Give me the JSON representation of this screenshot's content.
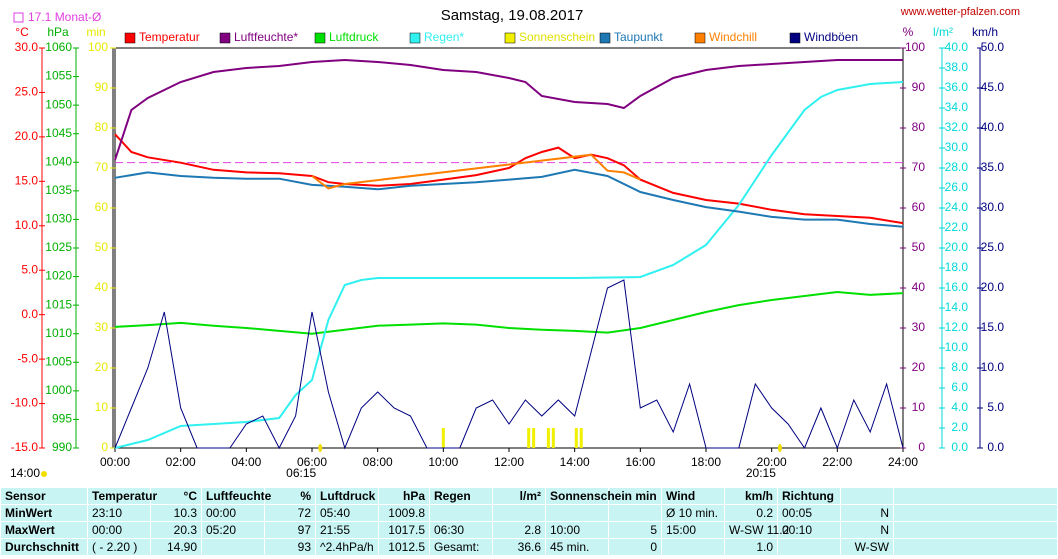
{
  "chart_data": {
    "type": "line",
    "title": "Samstag, 19.08.2017",
    "source": "www.wetter-pfalzen.com",
    "reference": {
      "label": "17.1 Monat-Ø",
      "value": 17.1,
      "axis": 0,
      "color": "#e040e0"
    },
    "time_label": "14:00",
    "annotations": [
      {
        "x": 6.25,
        "label": "06:15"
      },
      {
        "x": 20.25,
        "label": "20:15"
      }
    ],
    "xlim": [
      0,
      24
    ],
    "xticks": [
      {
        "value": 0,
        "label": "00:00"
      },
      {
        "value": 2,
        "label": "02:00"
      },
      {
        "value": 4,
        "label": "04:00"
      },
      {
        "value": 6,
        "label": "06:00"
      },
      {
        "value": 8,
        "label": "08:00"
      },
      {
        "value": 10,
        "label": "10:00"
      },
      {
        "value": 12,
        "label": "12:00"
      },
      {
        "value": 14,
        "label": "14:00"
      },
      {
        "value": 16,
        "label": "16:00"
      },
      {
        "value": 18,
        "label": "18:00"
      },
      {
        "value": 20,
        "label": "20:00"
      },
      {
        "value": 22,
        "label": "22:00"
      },
      {
        "value": 24,
        "label": "24:00"
      }
    ],
    "axes": [
      {
        "label": "°C",
        "color": "#ff0000",
        "lim": [
          -15,
          30
        ],
        "ticks": [
          {
            "value": -15,
            "label": "-15.0"
          },
          {
            "value": -10,
            "label": "-10.0"
          },
          {
            "value": -5,
            "label": "-5.0"
          },
          {
            "value": 0,
            "label": "0.0"
          },
          {
            "value": 5,
            "label": "5.0"
          },
          {
            "value": 10,
            "label": "10.0"
          },
          {
            "value": 15,
            "label": "15.0"
          },
          {
            "value": 20,
            "label": "20.0"
          },
          {
            "value": 25,
            "label": "25.0"
          },
          {
            "value": 30,
            "label": "30.0"
          }
        ]
      },
      {
        "label": "hPa",
        "color": "#00b000",
        "lim": [
          990,
          1060
        ],
        "ticks": [
          990,
          995,
          1000,
          1005,
          1010,
          1015,
          1020,
          1025,
          1030,
          1035,
          1040,
          1045,
          1050,
          1055,
          1060
        ]
      },
      {
        "label": "min",
        "color": "#e8e800",
        "lim": [
          0,
          100
        ],
        "ticks": [
          0,
          10,
          20,
          30,
          40,
          50,
          60,
          70,
          80,
          90,
          100
        ]
      },
      {
        "label": "%",
        "color": "#800080",
        "lim": [
          0,
          100
        ],
        "ticks": [
          0,
          10,
          20,
          30,
          40,
          50,
          60,
          70,
          80,
          90,
          100
        ]
      },
      {
        "label": "l/m²",
        "color": "#00d8d8",
        "lim": [
          0,
          40
        ],
        "ticks": [
          {
            "value": 0,
            "label": "0.0"
          },
          {
            "value": 2,
            "label": "2.0"
          },
          {
            "value": 4,
            "label": "4.0"
          },
          {
            "value": 6,
            "label": "6.0"
          },
          {
            "value": 8,
            "label": "8.0"
          },
          {
            "value": 10,
            "label": "10.0"
          },
          {
            "value": 12,
            "label": "12.0"
          },
          {
            "value": 14,
            "label": "14.0"
          },
          {
            "value": 16,
            "label": "16.0"
          },
          {
            "value": 18,
            "label": "18.0"
          },
          {
            "value": 20,
            "label": "20.0"
          },
          {
            "value": 22,
            "label": "22.0"
          },
          {
            "value": 24,
            "label": "24.0"
          },
          {
            "value": 26,
            "label": "26.0"
          },
          {
            "value": 28,
            "label": "28.0"
          },
          {
            "value": 30,
            "label": "30.0"
          },
          {
            "value": 32,
            "label": "32.0"
          },
          {
            "value": 34,
            "label": "34.0"
          },
          {
            "value": 36,
            "label": "36.0"
          },
          {
            "value": 38,
            "label": "38.0"
          },
          {
            "value": 40,
            "label": "40.0"
          }
        ]
      },
      {
        "label": "km/h",
        "color": "#000080",
        "lim": [
          0,
          50
        ],
        "ticks": [
          {
            "value": 0,
            "label": "0.0"
          },
          {
            "value": 5,
            "label": "5.0"
          },
          {
            "value": 10,
            "label": "10.0"
          },
          {
            "value": 15,
            "label": "15.0"
          },
          {
            "value": 20,
            "label": "20.0"
          },
          {
            "value": 25,
            "label": "25.0"
          },
          {
            "value": 30,
            "label": "30.0"
          },
          {
            "value": 35,
            "label": "35.0"
          },
          {
            "value": 40,
            "label": "40.0"
          },
          {
            "value": 45,
            "label": "45.0"
          },
          {
            "value": 50,
            "label": "50.0"
          }
        ]
      }
    ],
    "series": [
      {
        "name": "Temperatur",
        "color": "#ff0000",
        "axis": 0,
        "x": [
          0,
          0.5,
          1,
          2,
          3,
          4,
          5,
          6,
          6.5,
          7,
          8,
          9,
          10,
          11,
          12,
          12.5,
          13,
          13.5,
          14,
          14.5,
          15,
          15.5,
          16,
          17,
          18,
          19,
          20,
          21,
          22,
          23,
          24
        ],
        "values": [
          20.3,
          18.3,
          17.7,
          17.1,
          16.3,
          16.0,
          15.9,
          15.6,
          14.9,
          14.7,
          14.5,
          14.7,
          15.2,
          15.7,
          16.5,
          17.6,
          18.3,
          18.8,
          17.6,
          18.0,
          17.6,
          16.8,
          15.2,
          13.7,
          12.9,
          12.5,
          11.8,
          11.3,
          11.1,
          10.9,
          10.3
        ]
      },
      {
        "name": "Luftfeuchte*",
        "color": "#800080",
        "axis": 3,
        "x": [
          0,
          0.5,
          1,
          2,
          3,
          4,
          5,
          6,
          7,
          8,
          9,
          10,
          11,
          12,
          12.5,
          13,
          14,
          15,
          15.5,
          16,
          17,
          18,
          19,
          20,
          21,
          22,
          23,
          24
        ],
        "values": [
          72,
          84.5,
          87.5,
          91.5,
          94,
          95,
          95.5,
          96.5,
          97,
          96.5,
          95.75,
          94.5,
          94,
          92.5,
          91.5,
          88,
          86.5,
          86,
          85,
          88,
          92.5,
          94.5,
          95.5,
          96,
          96.5,
          97,
          97,
          97
        ]
      },
      {
        "name": "Luftdruck",
        "color": "#00e000",
        "axis": 1,
        "x": [
          0,
          1,
          2,
          3,
          4,
          5,
          6,
          7,
          8,
          9,
          10,
          11,
          12,
          13,
          14,
          15,
          16,
          17,
          18,
          19,
          20,
          21,
          22,
          23,
          24
        ],
        "values": [
          1011.2,
          1011.5,
          1011.9,
          1011.4,
          1011.0,
          1010.5,
          1010.0,
          1010.7,
          1011.4,
          1011.6,
          1011.8,
          1011.6,
          1011.0,
          1010.7,
          1010.5,
          1010.2,
          1011.0,
          1012.4,
          1013.8,
          1015.0,
          1015.9,
          1016.6,
          1017.3,
          1016.8,
          1017.1
        ]
      },
      {
        "name": "Regen*",
        "color": "#30f0f0",
        "axis": 4,
        "x": [
          0,
          1,
          2,
          3,
          4,
          5,
          5.5,
          6,
          6.5,
          7,
          7.5,
          8,
          10,
          14,
          16,
          17,
          18,
          19,
          20,
          21,
          21.5,
          22,
          23,
          24
        ],
        "values": [
          0,
          0.8,
          2.2,
          2.4,
          2.6,
          3.0,
          5.3,
          6.8,
          12.8,
          16.3,
          16.8,
          17.0,
          17.0,
          17.0,
          17.1,
          18.3,
          20.3,
          24.3,
          29.3,
          33.8,
          35.1,
          35.8,
          36.4,
          36.6
        ]
      },
      {
        "name": "Sonnenschein",
        "color": "#f0f000",
        "axis": 2,
        "type": "bar",
        "x": [
          10,
          12.6,
          12.75,
          13.2,
          13.35,
          14.05,
          14.2
        ],
        "values": [
          5,
          5,
          5,
          5,
          5,
          5,
          5
        ]
      },
      {
        "name": "Taupunkt",
        "color": "#1e78b4",
        "axis": 0,
        "x": [
          0,
          1,
          2,
          3,
          4,
          5,
          6,
          7,
          8,
          9,
          10,
          11,
          12,
          13,
          14,
          15,
          16,
          17,
          18,
          19,
          20,
          21,
          22,
          23,
          24
        ],
        "values": [
          15.4,
          16.0,
          15.6,
          15.4,
          15.3,
          15.3,
          14.6,
          14.4,
          14.1,
          14.5,
          14.7,
          14.9,
          15.2,
          15.5,
          16.3,
          15.6,
          13.8,
          12.9,
          12.1,
          11.6,
          11.0,
          10.7,
          10.7,
          10.2,
          9.9
        ]
      },
      {
        "name": "Windchill",
        "color": "#ff8000",
        "axis": 0,
        "x": [
          6,
          6.5,
          7,
          14.5,
          15,
          15.5,
          16
        ],
        "values": [
          15.6,
          14.2,
          14.7,
          18.0,
          16.2,
          16.0,
          15.2
        ]
      },
      {
        "name": "Windböen",
        "color": "#000080",
        "axis": 5,
        "x": [
          0,
          0.5,
          1,
          1.5,
          2,
          2.5,
          3,
          3.5,
          4,
          4.5,
          5,
          5.5,
          6,
          6.5,
          7,
          7.5,
          8,
          8.5,
          9,
          9.5,
          10,
          10.5,
          11,
          11.5,
          12,
          12.5,
          13,
          13.5,
          14,
          14.5,
          15,
          15.5,
          16,
          16.5,
          17,
          17.5,
          18,
          18.5,
          19,
          19.5,
          20,
          20.5,
          21,
          21.5,
          22,
          22.5,
          23,
          23.5,
          24
        ],
        "values": [
          0,
          5,
          10,
          17,
          5,
          0,
          0,
          0,
          3,
          4,
          0,
          4,
          17,
          7,
          0,
          5,
          7,
          5,
          4,
          0,
          0,
          0,
          5,
          6,
          3,
          6,
          4,
          6,
          4,
          12,
          20,
          21,
          5,
          6,
          2,
          8,
          0,
          0,
          0,
          8,
          5,
          3,
          0,
          5,
          0,
          6,
          2,
          8,
          0
        ]
      }
    ]
  },
  "table": {
    "header": [
      "Sensor",
      "Temperatur",
      "°C",
      "Luftfeuchte",
      "%",
      "Luftdruck",
      "hPa",
      "Regen",
      "l/m²",
      "Sonnenschein min",
      null,
      "Wind",
      "km/h",
      "Richtung",
      null
    ],
    "rows": [
      [
        "MinWert",
        "23:10",
        "10.3",
        "00:00",
        "72",
        "05:40",
        "1009.8",
        null,
        null,
        null,
        null,
        "Ø 10 min.",
        "0.2",
        "00:05",
        "N"
      ],
      [
        "MaxWert",
        "00:00",
        "20.3",
        "05:20",
        "97",
        "21:55",
        "1017.5",
        "06:30",
        "2.8",
        "10:00",
        "5",
        "15:00",
        "W-SW 11.2",
        "00:10",
        "N"
      ],
      [
        "Durchschnitt",
        "( - 2.20 )",
        "14.90",
        null,
        "93",
        "^2.4hPa/h",
        "1012.5",
        "Gesamt:",
        "36.6",
        "45 min.",
        "0",
        null,
        "1.0",
        null,
        "W-SW"
      ]
    ]
  }
}
